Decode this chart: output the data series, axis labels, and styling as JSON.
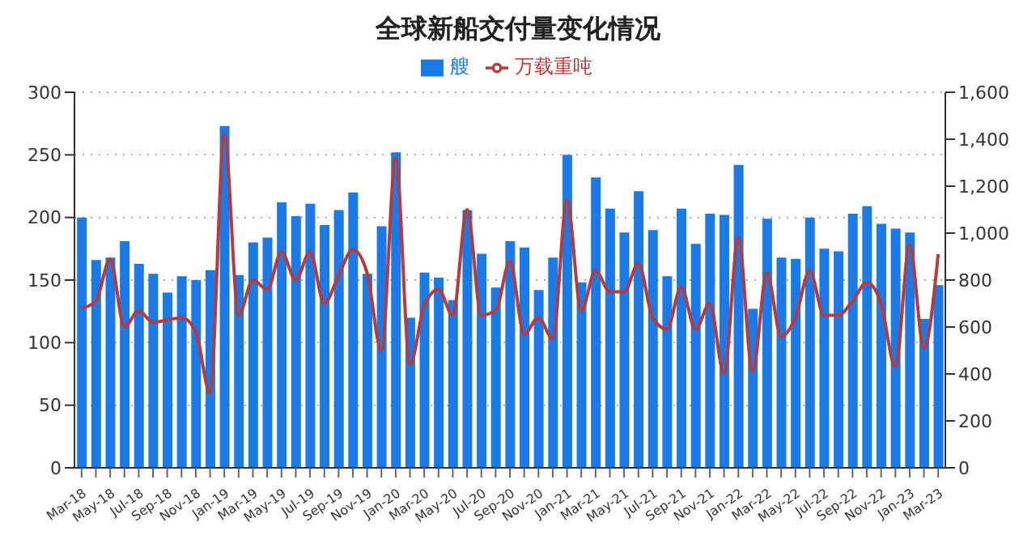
{
  "chart_data": {
    "type": "bar",
    "title": "全球新船交付量变化情况",
    "categories": [
      "Mar-18",
      null,
      "May-18",
      null,
      "Jul-18",
      null,
      "Sep-18",
      null,
      "Nov-18",
      null,
      "Jan-19",
      null,
      "Mar-19",
      null,
      "May-19",
      null,
      "Jul-19",
      null,
      "Sep-19",
      null,
      "Nov-19",
      null,
      "Jan-20",
      null,
      "Mar-20",
      null,
      "May-20",
      null,
      "Jul-20",
      null,
      "Sep-20",
      null,
      "Nov-20",
      null,
      "Jan-21",
      null,
      "Mar-21",
      null,
      "May-21",
      null,
      "Jul-21",
      null,
      "Sep-21",
      null,
      "Nov-21",
      null,
      "Jan-22",
      null,
      "Mar-22",
      null,
      "May-22",
      null,
      "Jul-22",
      null,
      "Sep-22",
      null,
      "Nov-22",
      null,
      "Jan-23",
      null,
      "Mar-23"
    ],
    "series": [
      {
        "name": "艘",
        "color": "#1a7be8",
        "values": [
          200,
          166,
          168,
          181,
          163,
          155,
          140,
          153,
          150,
          158,
          273,
          154,
          180,
          184,
          212,
          201,
          211,
          194,
          206,
          220,
          155,
          193,
          252,
          120,
          156,
          152,
          134,
          206,
          171,
          144,
          181,
          176,
          142,
          168,
          250,
          148,
          232,
          207,
          188,
          221,
          190,
          153,
          207,
          179,
          203,
          202,
          242,
          127,
          199,
          168,
          167,
          200,
          175,
          173,
          203,
          209,
          195,
          191,
          188,
          119,
          146
        ]
      },
      {
        "name": "万载重吨",
        "type": "line",
        "axis": "y2",
        "color": "#b83a3a",
        "values": [
          680,
          710,
          890,
          600,
          670,
          620,
          630,
          640,
          580,
          320,
          1420,
          650,
          800,
          760,
          920,
          800,
          920,
          700,
          820,
          930,
          830,
          500,
          1320,
          440,
          690,
          760,
          650,
          1100,
          650,
          670,
          880,
          570,
          640,
          550,
          1140,
          670,
          840,
          750,
          750,
          870,
          640,
          590,
          770,
          590,
          700,
          400,
          980,
          410,
          830,
          560,
          640,
          840,
          650,
          650,
          710,
          790,
          700,
          430,
          950,
          510,
          910
        ]
      }
    ],
    "ylim": [
      0,
      300
    ],
    "yticks": [
      0,
      50,
      100,
      150,
      200,
      250,
      300
    ],
    "y2lim": [
      0,
      1600
    ],
    "y2ticks": [
      0,
      {
        "value": 200,
        "label": "200"
      },
      {
        "value": 400,
        "label": "400"
      },
      {
        "value": 600,
        "label": "600"
      },
      {
        "value": 800,
        "label": "800"
      },
      {
        "value": 1000,
        "label": "1,000"
      },
      {
        "value": 1200,
        "label": "1,200"
      },
      {
        "value": 1400,
        "label": "1,400"
      },
      {
        "value": 1600,
        "label": "1,600"
      }
    ],
    "grid": "y",
    "legend": "top",
    "marker": "none"
  }
}
